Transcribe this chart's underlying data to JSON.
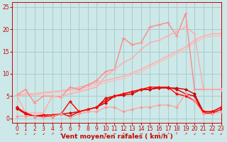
{
  "bg_color": "#cce8e8",
  "grid_color": "#aacccc",
  "xlabel": "Vent moyen/en rafales ( km/h )",
  "xlim": [
    -0.5,
    23
  ],
  "ylim": [
    -1,
    26
  ],
  "yticks": [
    0,
    5,
    10,
    15,
    20,
    25
  ],
  "xticks": [
    0,
    1,
    2,
    3,
    4,
    5,
    6,
    7,
    8,
    9,
    10,
    11,
    12,
    13,
    14,
    15,
    16,
    17,
    18,
    19,
    20,
    21,
    22,
    23
  ],
  "x": [
    0,
    1,
    2,
    3,
    4,
    5,
    6,
    7,
    8,
    9,
    10,
    11,
    12,
    13,
    14,
    15,
    16,
    17,
    18,
    19,
    20,
    21,
    22,
    23
  ],
  "series": [
    {
      "comment": "light pink linear upper - goes from ~5 to ~19",
      "y": [
        5.2,
        5.5,
        5.5,
        5.8,
        6.0,
        6.2,
        6.5,
        7.0,
        7.5,
        8.0,
        8.5,
        9.0,
        9.5,
        10.2,
        11.0,
        12.0,
        13.0,
        14.0,
        15.0,
        16.0,
        17.5,
        18.5,
        19.0,
        19.0
      ],
      "color": "#ffaaaa",
      "lw": 1.0,
      "marker": null,
      "zorder": 2
    },
    {
      "comment": "light pink linear lower - goes from ~5 to ~18",
      "y": [
        5.0,
        5.2,
        5.2,
        5.5,
        5.8,
        6.0,
        6.2,
        6.5,
        7.0,
        7.5,
        8.0,
        8.5,
        9.0,
        9.8,
        10.5,
        11.5,
        12.5,
        13.5,
        14.5,
        15.5,
        17.0,
        18.0,
        18.5,
        18.5
      ],
      "color": "#ffbbbb",
      "lw": 1.0,
      "marker": null,
      "zorder": 2
    },
    {
      "comment": "pink line with + markers - peaks at x=19 ~23.5 then drops",
      "y": [
        5.2,
        6.5,
        3.5,
        5.0,
        5.0,
        4.8,
        7.0,
        6.5,
        7.5,
        8.5,
        10.5,
        11.0,
        18.0,
        16.5,
        17.0,
        20.5,
        21.0,
        21.5,
        18.5,
        23.5,
        6.5,
        6.5,
        6.5,
        6.5
      ],
      "color": "#ff8888",
      "lw": 1.0,
      "marker": "+",
      "ms": 4.0,
      "zorder": 3
    },
    {
      "comment": "light pink with + markers - peaks at x=19 ~20 then drops",
      "y": [
        5.2,
        1.2,
        1.2,
        1.2,
        5.0,
        5.0,
        5.5,
        6.0,
        6.5,
        7.0,
        9.5,
        11.0,
        12.5,
        13.5,
        15.5,
        17.0,
        17.5,
        18.5,
        19.5,
        20.5,
        19.0,
        6.5,
        6.5,
        6.5
      ],
      "color": "#ffaaaa",
      "lw": 1.0,
      "marker": "+",
      "ms": 3.5,
      "zorder": 3
    },
    {
      "comment": "dark red - stays low ~2, peaks around 6-7 then drops",
      "y": [
        2.5,
        1.0,
        0.5,
        0.5,
        0.5,
        1.0,
        0.5,
        1.5,
        2.0,
        2.5,
        3.5,
        5.0,
        5.2,
        5.5,
        6.5,
        6.5,
        6.8,
        6.8,
        6.8,
        6.5,
        5.5,
        1.5,
        1.5,
        2.5
      ],
      "color": "#cc0000",
      "lw": 1.0,
      "marker": "D",
      "ms": 2.0,
      "zorder": 4
    },
    {
      "comment": "red - similar low line",
      "y": [
        2.2,
        1.0,
        0.5,
        0.5,
        0.5,
        1.0,
        1.2,
        1.5,
        2.0,
        2.5,
        4.5,
        5.0,
        5.5,
        6.0,
        6.5,
        6.5,
        7.0,
        7.0,
        6.5,
        5.5,
        5.0,
        1.2,
        1.2,
        2.0
      ],
      "color": "#dd0000",
      "lw": 1.0,
      "marker": "D",
      "ms": 2.0,
      "zorder": 4
    },
    {
      "comment": "bright red - low line with slight dip then rise",
      "y": [
        2.5,
        1.2,
        0.5,
        0.8,
        0.8,
        1.0,
        3.8,
        1.5,
        2.0,
        2.5,
        4.0,
        5.0,
        5.5,
        6.0,
        6.5,
        7.0,
        7.0,
        7.0,
        5.5,
        5.0,
        4.0,
        1.5,
        1.5,
        2.5
      ],
      "color": "#ff0000",
      "lw": 1.0,
      "marker": "D",
      "ms": 2.0,
      "zorder": 4
    },
    {
      "comment": "pink dashed low - goes low then up slightly",
      "y": [
        0.5,
        0.5,
        0.5,
        0.2,
        0.5,
        1.0,
        0.2,
        1.0,
        1.5,
        1.5,
        2.5,
        2.5,
        1.5,
        2.0,
        2.5,
        2.5,
        3.0,
        3.0,
        2.5,
        5.5,
        4.0,
        1.0,
        1.0,
        1.5
      ],
      "color": "#ff9999",
      "lw": 0.8,
      "marker": "D",
      "ms": 2.0,
      "zorder": 4
    }
  ],
  "xlabel_color": "#cc0000",
  "tick_color": "#cc0000",
  "xlabel_fontsize": 6.5,
  "tick_fontsize": 5.5
}
